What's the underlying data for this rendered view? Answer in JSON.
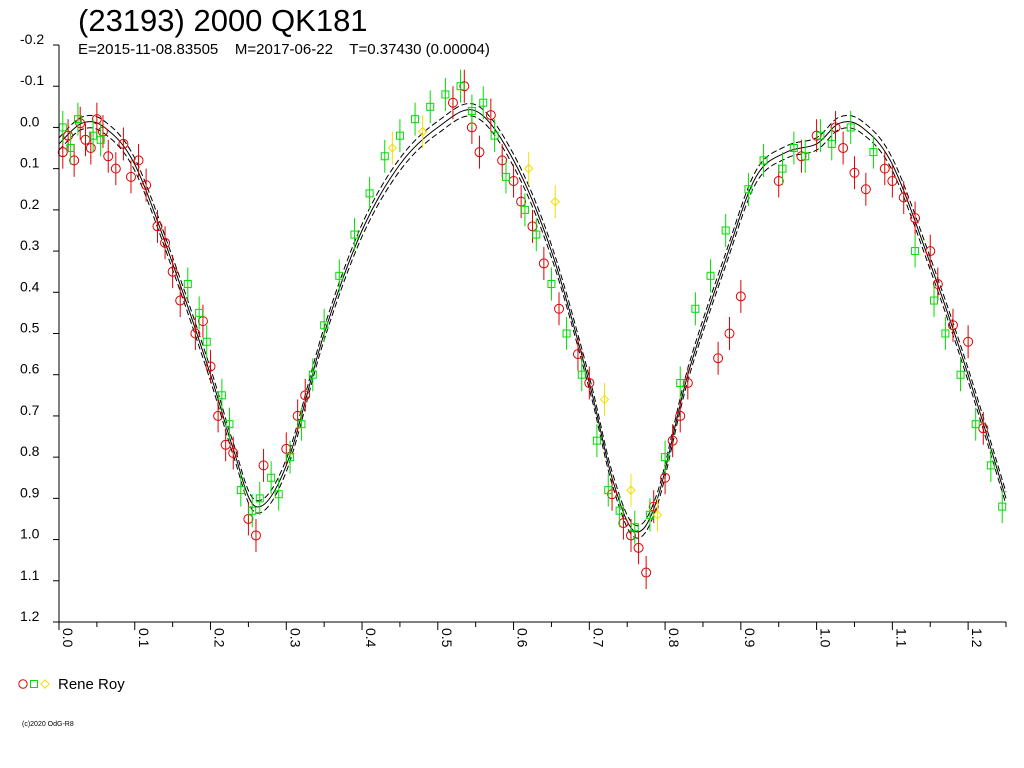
{
  "chart_data": {
    "type": "scatter",
    "title": "(23193) 2000 QK181",
    "subtitle": "E=2015-11-08.83505    M=2017-06-22    T=0.37430 (0.00004)",
    "xlabel": "",
    "ylabel": "",
    "xlim": [
      0.0,
      1.25
    ],
    "ylim": [
      -0.2,
      1.2
    ],
    "y_inverted": true,
    "yticks": [
      "-0.2",
      "-0.1",
      "0.0",
      "0.1",
      "0.2",
      "0.3",
      "0.4",
      "0.5",
      "0.6",
      "0.7",
      "0.8",
      "0.9",
      "1.0",
      "1.1",
      "1.2"
    ],
    "xticks": [
      "0.0",
      "0.1",
      "0.2",
      "0.3",
      "0.4",
      "0.5",
      "0.6",
      "0.7",
      "0.8",
      "0.9",
      "1.0",
      "1.1",
      "1.2"
    ],
    "grid": false,
    "legend_position": "bottom-left",
    "fit_curve": {
      "x": [
        0.0,
        0.03,
        0.06,
        0.1,
        0.15,
        0.2,
        0.23,
        0.26,
        0.3,
        0.35,
        0.4,
        0.45,
        0.5,
        0.55,
        0.6,
        0.65,
        0.7,
        0.73,
        0.76,
        0.79,
        0.83,
        0.88,
        0.92,
        0.96,
        1.0,
        1.03,
        1.06,
        1.1,
        1.15,
        1.2,
        1.25
      ],
      "y": [
        0.04,
        -0.01,
        0.0,
        0.09,
        0.33,
        0.6,
        0.78,
        0.92,
        0.82,
        0.5,
        0.25,
        0.09,
        0.0,
        -0.04,
        0.08,
        0.3,
        0.62,
        0.85,
        0.98,
        0.9,
        0.6,
        0.32,
        0.12,
        0.06,
        0.04,
        -0.01,
        0.0,
        0.09,
        0.33,
        0.6,
        0.9
      ],
      "band_offset": 0.015
    },
    "error_bar": 0.04,
    "series": [
      {
        "name": "",
        "marker": "circle",
        "color": "#e00000",
        "x": [
          0.005,
          0.012,
          0.02,
          0.028,
          0.035,
          0.042,
          0.05,
          0.058,
          0.065,
          0.075,
          0.085,
          0.095,
          0.105,
          0.115,
          0.13,
          0.14,
          0.15,
          0.16,
          0.18,
          0.19,
          0.2,
          0.21,
          0.22,
          0.23,
          0.25,
          0.26,
          0.27,
          0.3,
          0.315,
          0.325,
          0.52,
          0.535,
          0.545,
          0.555,
          0.57,
          0.585,
          0.6,
          0.61,
          0.625,
          0.64,
          0.66,
          0.685,
          0.7,
          0.73,
          0.745,
          0.755,
          0.765,
          0.775,
          0.785,
          0.8,
          0.81,
          0.82,
          0.83,
          0.87,
          0.885,
          0.9,
          0.95,
          0.98,
          1.0,
          1.025,
          1.035,
          1.05,
          1.065,
          1.09,
          1.1,
          1.115,
          1.13,
          1.15,
          1.16,
          1.18,
          1.2,
          1.22
        ],
        "y": [
          0.06,
          0.02,
          0.08,
          -0.01,
          0.03,
          0.05,
          -0.02,
          0.01,
          0.07,
          0.1,
          0.04,
          0.12,
          0.08,
          0.14,
          0.24,
          0.28,
          0.35,
          0.42,
          0.5,
          0.47,
          0.58,
          0.7,
          0.77,
          0.79,
          0.95,
          0.99,
          0.82,
          0.78,
          0.7,
          0.65,
          -0.06,
          -0.1,
          0.0,
          0.06,
          -0.03,
          0.08,
          0.13,
          0.18,
          0.24,
          0.33,
          0.44,
          0.55,
          0.62,
          0.89,
          0.96,
          0.99,
          1.02,
          1.08,
          0.92,
          0.85,
          0.76,
          0.7,
          0.62,
          0.56,
          0.5,
          0.41,
          0.13,
          0.07,
          0.02,
          0.0,
          0.05,
          0.11,
          0.15,
          0.1,
          0.13,
          0.17,
          0.22,
          0.3,
          0.38,
          0.48,
          0.52,
          0.73
        ]
      },
      {
        "name": "",
        "marker": "square",
        "color": "#00dd00",
        "x": [
          0.005,
          0.015,
          0.025,
          0.045,
          0.055,
          0.17,
          0.185,
          0.195,
          0.215,
          0.225,
          0.24,
          0.255,
          0.265,
          0.28,
          0.29,
          0.305,
          0.32,
          0.335,
          0.35,
          0.37,
          0.39,
          0.41,
          0.43,
          0.45,
          0.47,
          0.49,
          0.51,
          0.53,
          0.545,
          0.56,
          0.575,
          0.59,
          0.615,
          0.63,
          0.65,
          0.67,
          0.69,
          0.71,
          0.725,
          0.74,
          0.76,
          0.78,
          0.8,
          0.82,
          0.84,
          0.86,
          0.88,
          0.91,
          0.93,
          0.955,
          0.97,
          0.985,
          1.005,
          1.02,
          1.045,
          1.075,
          1.13,
          1.155,
          1.17,
          1.19,
          1.21,
          1.23,
          1.245
        ],
        "y": [
          0.0,
          0.05,
          -0.02,
          0.02,
          0.03,
          0.38,
          0.45,
          0.52,
          0.65,
          0.72,
          0.88,
          0.93,
          0.9,
          0.85,
          0.89,
          0.8,
          0.72,
          0.6,
          0.48,
          0.36,
          0.26,
          0.16,
          0.07,
          0.02,
          -0.02,
          -0.05,
          -0.08,
          -0.1,
          -0.04,
          -0.06,
          0.02,
          0.12,
          0.2,
          0.26,
          0.38,
          0.5,
          0.6,
          0.76,
          0.88,
          0.93,
          0.97,
          0.94,
          0.8,
          0.62,
          0.44,
          0.36,
          0.25,
          0.15,
          0.08,
          0.1,
          0.05,
          0.07,
          0.02,
          0.04,
          0.0,
          0.06,
          0.3,
          0.42,
          0.5,
          0.6,
          0.72,
          0.82,
          0.92
        ]
      },
      {
        "name": "",
        "marker": "diamond",
        "color": "#f0e000",
        "x": [
          0.44,
          0.48,
          0.62,
          0.655,
          0.72,
          0.755,
          0.79
        ],
        "y": [
          0.05,
          0.01,
          0.1,
          0.18,
          0.66,
          0.88,
          0.94
        ]
      }
    ],
    "legend": [
      {
        "label": "Rene Roy",
        "markers": [
          "circle",
          "square",
          "diamond"
        ],
        "colors": [
          "#e00000",
          "#00dd00",
          "#f0e000"
        ]
      }
    ]
  },
  "copyright": "(c)2020 OdG-R8"
}
